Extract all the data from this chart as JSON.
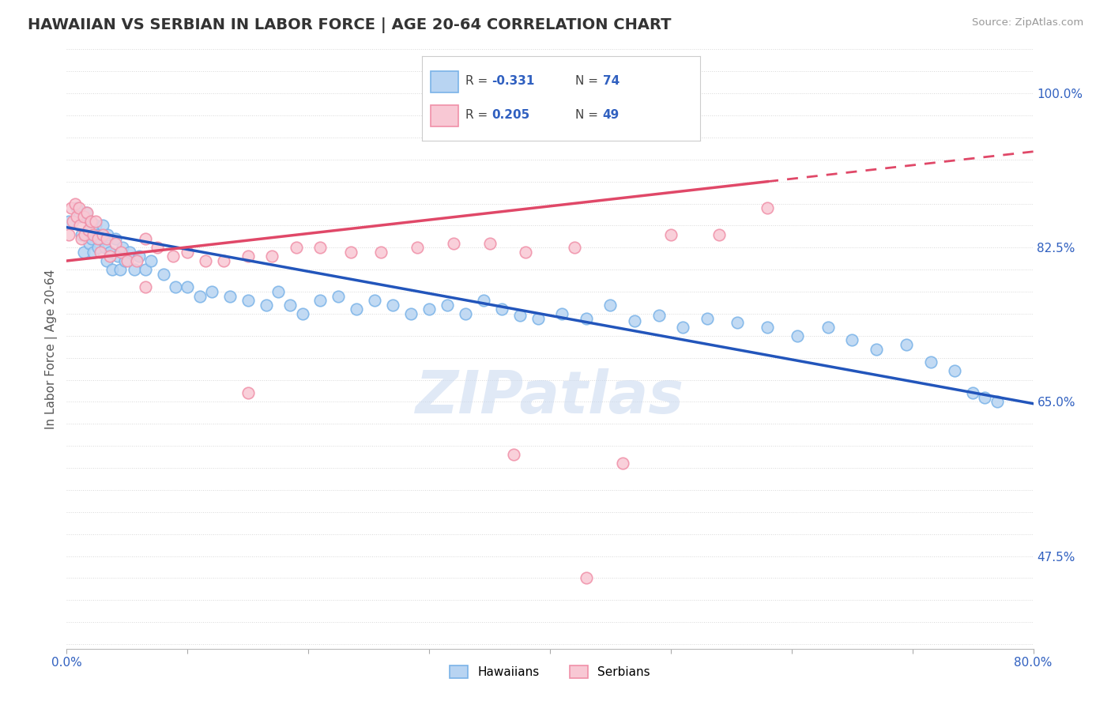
{
  "title": "HAWAIIAN VS SERBIAN IN LABOR FORCE | AGE 20-64 CORRELATION CHART",
  "source_text": "Source: ZipAtlas.com",
  "ylabel": "In Labor Force | Age 20-64",
  "xlim": [
    0.0,
    0.8
  ],
  "ylim": [
    0.37,
    1.05
  ],
  "ytick_labels_show": [
    0.475,
    0.65,
    0.825,
    1.0
  ],
  "background_color": "#ffffff",
  "grid_color": "#d8d8d8",
  "watermark": "ZIPatlas",
  "watermark_color": "#c8d8f0",
  "hawaiian_color": "#7ab3e8",
  "hawaiian_fill": "#b8d4f2",
  "serbian_color": "#f090a8",
  "serbian_fill": "#f8c8d4",
  "trend_hawaiian_color": "#2255bb",
  "trend_serbian_color": "#e04868",
  "legend_r_hawaiian": "-0.331",
  "legend_n_hawaiian": "74",
  "legend_r_serbian": "0.205",
  "legend_n_serbian": "49",
  "hawaiian_x": [
    0.002,
    0.008,
    0.01,
    0.012,
    0.014,
    0.016,
    0.018,
    0.019,
    0.02,
    0.021,
    0.022,
    0.024,
    0.025,
    0.026,
    0.028,
    0.03,
    0.032,
    0.033,
    0.034,
    0.036,
    0.038,
    0.04,
    0.042,
    0.044,
    0.046,
    0.048,
    0.052,
    0.056,
    0.06,
    0.065,
    0.07,
    0.08,
    0.09,
    0.1,
    0.11,
    0.12,
    0.135,
    0.15,
    0.165,
    0.175,
    0.185,
    0.195,
    0.21,
    0.225,
    0.24,
    0.255,
    0.27,
    0.285,
    0.3,
    0.315,
    0.33,
    0.345,
    0.36,
    0.375,
    0.39,
    0.41,
    0.43,
    0.45,
    0.47,
    0.49,
    0.51,
    0.53,
    0.555,
    0.58,
    0.605,
    0.63,
    0.65,
    0.67,
    0.695,
    0.715,
    0.735,
    0.75,
    0.76,
    0.77
  ],
  "hawaiian_y": [
    0.855,
    0.87,
    0.86,
    0.84,
    0.82,
    0.865,
    0.845,
    0.83,
    0.855,
    0.835,
    0.82,
    0.85,
    0.84,
    0.825,
    0.835,
    0.85,
    0.825,
    0.81,
    0.84,
    0.82,
    0.8,
    0.835,
    0.815,
    0.8,
    0.825,
    0.81,
    0.82,
    0.8,
    0.815,
    0.8,
    0.81,
    0.795,
    0.78,
    0.78,
    0.77,
    0.775,
    0.77,
    0.765,
    0.76,
    0.775,
    0.76,
    0.75,
    0.765,
    0.77,
    0.755,
    0.765,
    0.76,
    0.75,
    0.755,
    0.76,
    0.75,
    0.765,
    0.755,
    0.748,
    0.745,
    0.75,
    0.745,
    0.76,
    0.742,
    0.748,
    0.735,
    0.745,
    0.74,
    0.735,
    0.725,
    0.735,
    0.72,
    0.71,
    0.715,
    0.695,
    0.685,
    0.66,
    0.655,
    0.65
  ],
  "serbian_x": [
    0.002,
    0.004,
    0.005,
    0.007,
    0.008,
    0.01,
    0.011,
    0.012,
    0.014,
    0.015,
    0.017,
    0.018,
    0.02,
    0.022,
    0.024,
    0.026,
    0.028,
    0.03,
    0.033,
    0.036,
    0.04,
    0.045,
    0.05,
    0.058,
    0.065,
    0.075,
    0.088,
    0.1,
    0.115,
    0.13,
    0.15,
    0.17,
    0.19,
    0.21,
    0.235,
    0.26,
    0.29,
    0.32,
    0.35,
    0.38,
    0.42,
    0.46,
    0.5,
    0.54,
    0.58,
    0.065,
    0.15,
    0.37,
    0.43
  ],
  "serbian_y": [
    0.84,
    0.87,
    0.855,
    0.875,
    0.86,
    0.87,
    0.85,
    0.835,
    0.86,
    0.84,
    0.865,
    0.845,
    0.855,
    0.84,
    0.855,
    0.835,
    0.82,
    0.84,
    0.835,
    0.815,
    0.83,
    0.82,
    0.81,
    0.81,
    0.835,
    0.825,
    0.815,
    0.82,
    0.81,
    0.81,
    0.815,
    0.815,
    0.825,
    0.825,
    0.82,
    0.82,
    0.825,
    0.83,
    0.83,
    0.82,
    0.825,
    0.58,
    0.84,
    0.84,
    0.87,
    0.78,
    0.66,
    0.59,
    0.45
  ],
  "trend_h_x0": 0.0,
  "trend_h_y0": 0.848,
  "trend_h_x1": 0.8,
  "trend_h_y1": 0.648,
  "trend_s_x0": 0.0,
  "trend_s_y0": 0.81,
  "trend_s_x1": 0.58,
  "trend_s_y1": 0.9,
  "trend_s_dash_x0": 0.58,
  "trend_s_dash_y0": 0.9,
  "trend_s_dash_x1": 0.8,
  "trend_s_dash_y1": 0.934
}
